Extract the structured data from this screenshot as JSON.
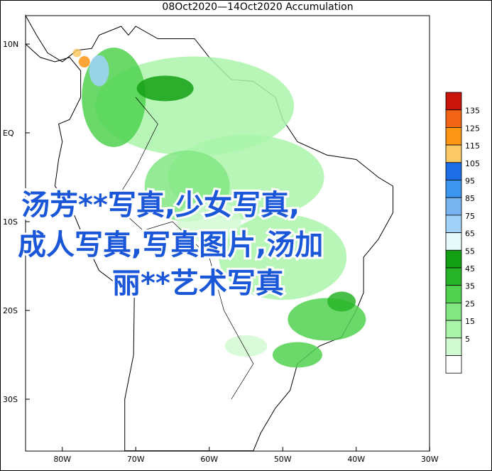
{
  "title": "08Oct2020—14Oct2020 Accumulation",
  "lon_ticks": [
    {
      "value": -80,
      "label": "80W"
    },
    {
      "value": -70,
      "label": "70W"
    },
    {
      "value": -60,
      "label": "60W"
    },
    {
      "value": -50,
      "label": "50W"
    },
    {
      "value": -40,
      "label": "40W"
    },
    {
      "value": -30,
      "label": "30W"
    }
  ],
  "lat_ticks": [
    {
      "value": 10,
      "label": "10N"
    },
    {
      "value": 0,
      "label": "EQ"
    },
    {
      "value": -10,
      "label": "10S"
    },
    {
      "value": -20,
      "label": "20S"
    },
    {
      "value": -30,
      "label": "30S"
    }
  ],
  "colorbar": {
    "levels": [
      135,
      125,
      115,
      105,
      95,
      85,
      75,
      65,
      55,
      45,
      35,
      25,
      15,
      5
    ],
    "colors": [
      "#c8140a",
      "#f06414",
      "#fa9614",
      "#fac864",
      "#1e6ee6",
      "#3c96f0",
      "#78b4f0",
      "#a0d2fa",
      "#e6fafa",
      "#14a014",
      "#28b428",
      "#50d250",
      "#82e682",
      "#aaf5aa",
      "#d2fad2",
      "#ffffff"
    ]
  },
  "overlay": [
    "汤芳**写真,少女写真,",
    "成人写真,写真图片,汤加",
    "丽**艺术写真"
  ]
}
